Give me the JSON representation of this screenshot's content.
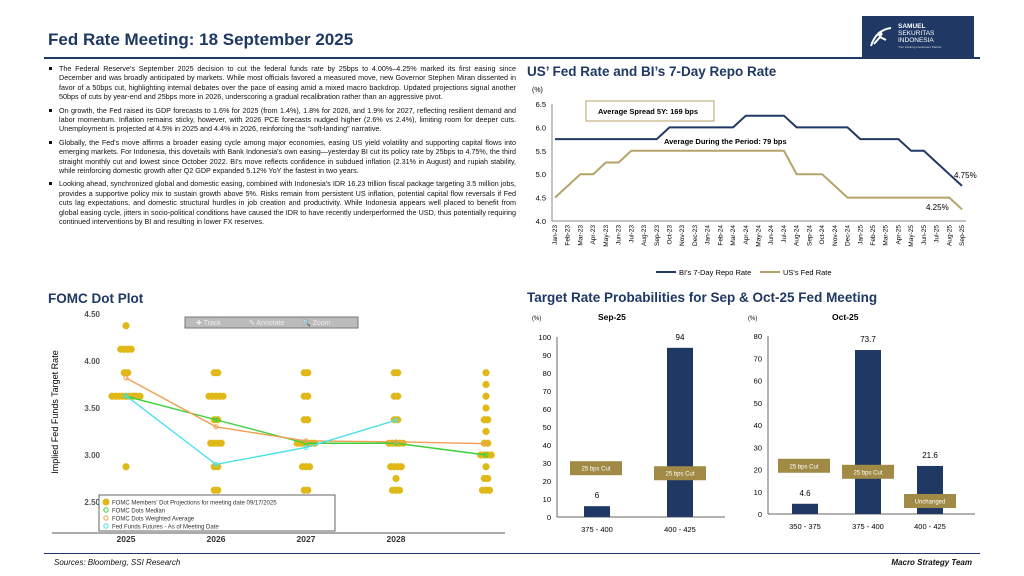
{
  "header": {
    "title": "Fed Rate Meeting: 18 September 2025",
    "logo": {
      "name": "SAMUEL",
      "line2": "SEKURITAS",
      "line3": "INDONESIA",
      "tagline": "Your Lifelong Investment Partner"
    }
  },
  "bullets": [
    "The Federal Reserve's September 2025 decision to cut the federal funds rate by 25bps to 4.00%–4.25% marked its first easing since December and was broadly anticipated by markets. While most officials favored a measured move, new Governor Stephen Miran dissented in favor of a 50bps cut, highlighting internal debates over the pace of easing amid a mixed macro backdrop. Updated projections signal another 50bps of cuts by year-end and 25bps more in 2026, underscoring a gradual recalibration rather than an aggressive pivot.",
    "On growth, the Fed raised its GDP forecasts to 1.6% for 2025 (from 1.4%), 1.8% for 2026, and 1.9% for 2027, reflecting resilient demand and labor momentum. Inflation remains sticky, however, with 2026 PCE forecasts nudged higher (2.6% vs 2.4%), limiting room for deeper cuts. Unemployment is projected at 4.5% in 2025 and 4.4% in 2026, reinforcing the “soft-landing” narrative.",
    "Globally, the Fed's move affirms a broader easing cycle among major economies, easing US yield volatility and supporting capital flows into emerging markets. For Indonesia, this dovetails with Bank Indonesia's own easing—yesterday BI cut its policy rate by 25bps to 4.75%, the third straight monthly cut and lowest since October 2022. BI's move reflects confidence in subdued inflation (2.31% in August) and rupiah stability, while reinforcing domestic growth after Q2 GDP expanded 5.12% YoY the fastest in two years.",
    "Looking ahead, synchronized global and domestic easing, combined with Indonesia's IDR 16.23 trillion fiscal package targeting 3.5 million jobs, provides a supportive policy mix to sustain growth above 5%. Risks remain from persistent US inflation, potential capital flow reversals if Fed cuts lag expectations, and domestic structural hurdles in job creation and productivity. While Indonesia appears well placed to benefit from global easing cycle, jitters in socio-political conditions have caused the IDR to have recently underperformed the USD, thus potentially requiring continued interventions by BI and resulting in lower FX reserves."
  ],
  "sections": {
    "line": "US’ Fed Rate and BI’s 7-Day Repo Rate",
    "dot": "FOMC Dot Plot",
    "prob": "Target Rate Probabilities for Sep & Oct-25 Fed Meeting"
  },
  "footer": {
    "sources": "Sources: Bloomberg, SSI Research",
    "team": "Macro Strategy Team"
  },
  "chart_data": [
    {
      "type": "line",
      "ylabel": "(%)",
      "ylim": [
        4.0,
        6.5
      ],
      "yticks": [
        "4.0",
        "4.5",
        "5.0",
        "5.5",
        "6.0",
        "6.5"
      ],
      "categories": [
        "Jan-23",
        "Feb-23",
        "Mar-23",
        "Apr-23",
        "May-23",
        "Jun-23",
        "Jul-23",
        "Aug-23",
        "Sep-23",
        "Oct-23",
        "Nov-23",
        "Dec-23",
        "Jan-24",
        "Feb-24",
        "Mar-24",
        "Apr-24",
        "May-24",
        "Jun-24",
        "Jul-24",
        "Aug-24",
        "Sep-24",
        "Oct-24",
        "Nov-24",
        "Dec-24",
        "Jan-25",
        "Feb-25",
        "Mar-25",
        "Apr-25",
        "May-25",
        "Jun-25",
        "Jul-25",
        "Aug-25",
        "Sep-25"
      ],
      "series": [
        {
          "name": "BI's 7-Day Repo Rate",
          "color": "#1f3864",
          "values": [
            5.75,
            5.75,
            5.75,
            5.75,
            5.75,
            5.75,
            5.75,
            5.75,
            5.75,
            6,
            6,
            6,
            6,
            6,
            6,
            6.25,
            6.25,
            6.25,
            6.25,
            6,
            6,
            6,
            6,
            6,
            5.75,
            5.75,
            5.75,
            5.75,
            5.5,
            5.5,
            5.25,
            5,
            4.75
          ]
        },
        {
          "name": "US's Fed Rate",
          "color": "#b5a36a",
          "values": [
            4.5,
            4.75,
            5,
            5,
            5.25,
            5.25,
            5.5,
            5.5,
            5.5,
            5.5,
            5.5,
            5.5,
            5.5,
            5.5,
            5.5,
            5.5,
            5.5,
            5.5,
            5.5,
            5,
            5,
            5,
            4.75,
            4.5,
            4.5,
            4.5,
            4.5,
            4.5,
            4.5,
            4.5,
            4.5,
            4.5,
            4.25
          ]
        }
      ],
      "annotations": [
        "Average Spread 5Y: 169 bps",
        "Average During the Period: 79 bps",
        "4.75%",
        "4.25%"
      ],
      "legend": "bottom"
    },
    {
      "type": "scatter",
      "ylabel": "Implied Fed Funds Target Rate",
      "ylim": [
        2.5,
        4.5
      ],
      "yticks": [
        "2.50",
        "3.00",
        "3.50",
        "4.00",
        "4.50"
      ],
      "categories": [
        "2025",
        "2026",
        "2027",
        "2028",
        ""
      ],
      "toolbar": [
        "✚ Track",
        "✎ Annotate",
        "🔍 Zoom"
      ],
      "dots": [
        [
          [
            4.375,
            1
          ],
          [
            4.125,
            4
          ],
          [
            3.875,
            2
          ],
          [
            3.625,
            9
          ],
          [
            2.875,
            1
          ]
        ],
        [
          [
            3.875,
            2
          ],
          [
            3.625,
            5
          ],
          [
            3.375,
            2
          ],
          [
            3.125,
            4
          ],
          [
            2.875,
            2
          ],
          [
            2.625,
            2
          ]
        ],
        [
          [
            3.875,
            2
          ],
          [
            3.625,
            2
          ],
          [
            3.375,
            2
          ],
          [
            3.125,
            6
          ],
          [
            2.875,
            3
          ],
          [
            2.625,
            2
          ],
          [
            2.375,
            1
          ]
        ],
        [
          [
            3.875,
            2
          ],
          [
            3.625,
            2
          ],
          [
            3.375,
            2
          ],
          [
            3.125,
            5
          ],
          [
            2.875,
            4
          ],
          [
            2.75,
            1
          ],
          [
            2.625,
            3
          ]
        ],
        [
          [
            3.875,
            1
          ],
          [
            3.75,
            1
          ],
          [
            3.625,
            1
          ],
          [
            3.5,
            1
          ],
          [
            3.375,
            2
          ],
          [
            3.25,
            1
          ],
          [
            3.125,
            2
          ],
          [
            3.0,
            4
          ],
          [
            2.875,
            1
          ],
          [
            2.75,
            2
          ],
          [
            2.625,
            3
          ]
        ]
      ],
      "series": [
        {
          "name": "FOMC Members' Dot Projections for meeting date 09/17/2025",
          "color": "#e0b818"
        },
        {
          "name": "FOMC Dots Median",
          "color": "#3ad13a",
          "values": [
            3.625,
            3.375,
            3.125,
            3.125,
            3.0
          ]
        },
        {
          "name": "FOMC Dots Weighted Average",
          "color": "#f0a050",
          "values": [
            3.82,
            3.3,
            3.15,
            3.14,
            3.12
          ]
        },
        {
          "name": "Fed Funds Futures - As of Meeting Date",
          "color": "#4de0e8",
          "values": [
            3.63,
            2.9,
            3.08,
            3.37
          ]
        }
      ],
      "legend": "bottom-left"
    },
    {
      "type": "bar",
      "title": "Sep-25",
      "ylabel": "(%)",
      "ylim": [
        0,
        100
      ],
      "yticks": [
        "0",
        "10",
        "20",
        "30",
        "40",
        "50",
        "60",
        "70",
        "80",
        "90",
        "100"
      ],
      "categories": [
        "375 - 400",
        "400 - 425"
      ],
      "values": [
        6,
        94
      ],
      "labels": [
        "25 bps Cut",
        "25 bps Cut"
      ],
      "color": "#1f3864",
      "label_color": "#a08a45"
    },
    {
      "type": "bar",
      "title": "Oct-25",
      "ylabel": "(%)",
      "ylim": [
        0,
        80
      ],
      "yticks": [
        "0",
        "10",
        "20",
        "30",
        "40",
        "50",
        "60",
        "70",
        "80"
      ],
      "categories": [
        "350 - 375",
        "375 - 400",
        "400 - 425"
      ],
      "values": [
        4.6,
        73.7,
        21.6
      ],
      "labels": [
        "25 bps Cut",
        "25 bps Cut",
        "Unchanged"
      ],
      "color": "#1f3864",
      "label_color": "#a08a45"
    }
  ]
}
